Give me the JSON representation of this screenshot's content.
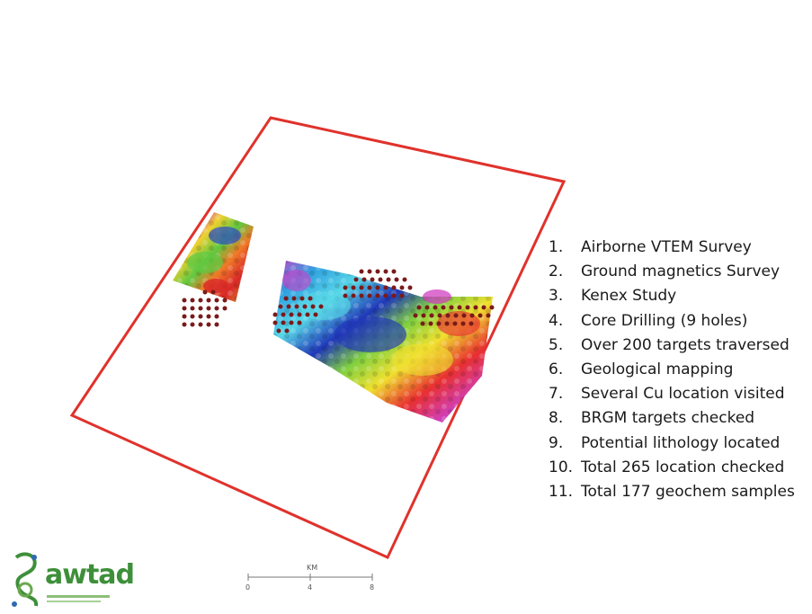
{
  "legend": [
    {
      "num": "1.",
      "text": "Airborne VTEM Survey"
    },
    {
      "num": "2.",
      "text": "Ground magnetics Survey"
    },
    {
      "num": "3.",
      "text": "Kenex Study"
    },
    {
      "num": "4.",
      "text": "Core Drilling (9 holes)"
    },
    {
      "num": "5.",
      "text": "Over 200 targets traversed"
    },
    {
      "num": "6.",
      "text": "Geological mapping"
    },
    {
      "num": "7.",
      "text": "Several Cu location visited"
    },
    {
      "num": "8.",
      "text": "BRGM targets checked"
    },
    {
      "num": "9.",
      "text": "Potential lithology located"
    },
    {
      "num": "10.",
      "text": "Total 265 location checked"
    },
    {
      "num": "11.",
      "text": "Total 177 geochem samples"
    }
  ],
  "scale_bar": {
    "unit": "KM",
    "ticks": [
      "0",
      "4",
      "8"
    ]
  },
  "logo": {
    "text": "awtad"
  },
  "colors": {
    "boundary": "#e0322c",
    "sample_point": "#7a1a1a",
    "logo_green": "#3e8f3a"
  }
}
